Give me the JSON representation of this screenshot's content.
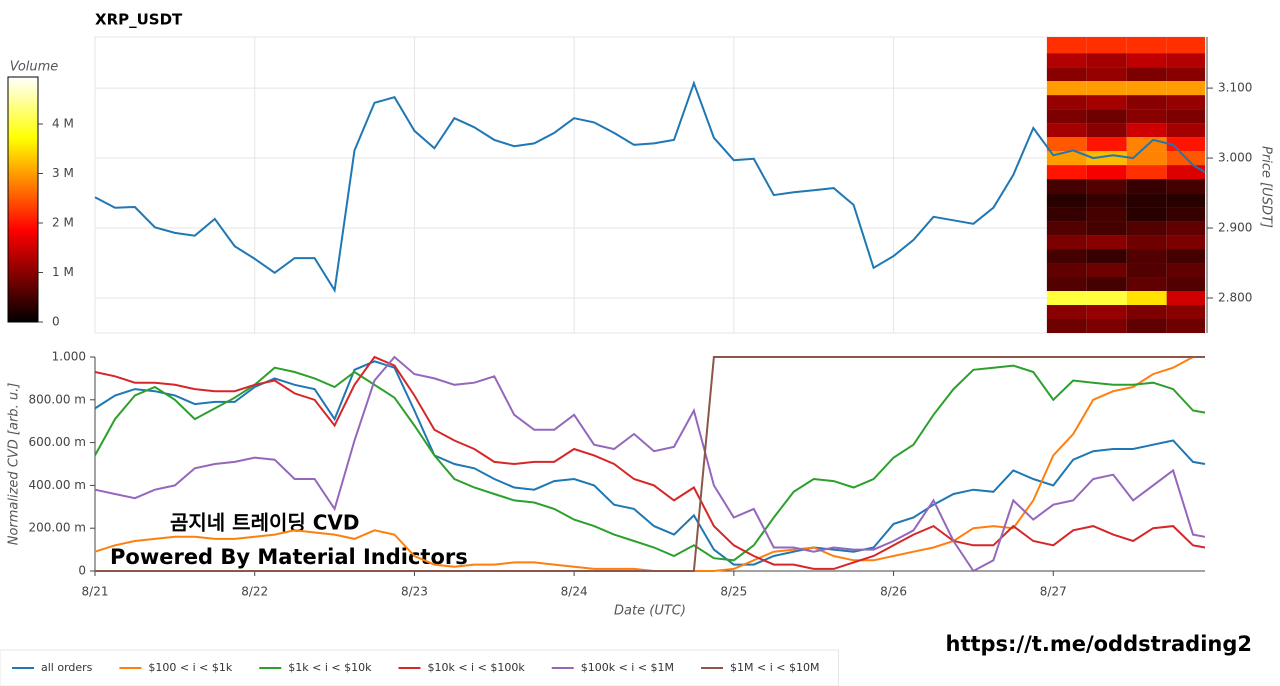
{
  "chart_data": [
    {
      "type": "line",
      "title": "XRP_USDT",
      "y_label": "Price [USDT]",
      "x": [
        0,
        0.125,
        0.25,
        0.375,
        0.5,
        0.625,
        0.75,
        0.875,
        1,
        1.125,
        1.25,
        1.375,
        1.5,
        1.625,
        1.75,
        1.875,
        2,
        2.125,
        2.25,
        2.375,
        2.5,
        2.625,
        2.75,
        2.875,
        3,
        3.125,
        3.25,
        3.375,
        3.5,
        3.625,
        3.75,
        3.875,
        4,
        4.125,
        4.25,
        4.375,
        4.5,
        4.625,
        4.75,
        4.875,
        5,
        5.125,
        5.25,
        5.375,
        5.5,
        5.625,
        5.75,
        5.875,
        6,
        6.125,
        6.25,
        6.375,
        6.5,
        6.625,
        6.75,
        6.875,
        6.95
      ],
      "xlim": [
        0,
        6.95
      ],
      "xticks": [
        0,
        1,
        2,
        3,
        4,
        5,
        6
      ],
      "ylim": [
        2.75,
        3.173
      ],
      "yticks": [
        {
          "value": 2.8,
          "label": "2.800"
        },
        {
          "value": 2.9,
          "label": "2.900"
        },
        {
          "value": 3.0,
          "label": "3.000"
        },
        {
          "value": 3.1,
          "label": "3.100"
        }
      ],
      "grid": true,
      "series": [
        {
          "color": "#1f77b4",
          "values": [
            2.944,
            2.929,
            2.93,
            2.901,
            2.893,
            2.889,
            2.913,
            2.874,
            2.856,
            2.836,
            2.857,
            2.857,
            2.811,
            3.011,
            3.079,
            3.087,
            3.039,
            3.014,
            3.057,
            3.044,
            3.026,
            3.017,
            3.021,
            3.036,
            3.057,
            3.051,
            3.036,
            3.019,
            3.021,
            3.026,
            3.107,
            3.029,
            2.997,
            2.999,
            2.947,
            2.951,
            2.954,
            2.957,
            2.933,
            2.843,
            2.86,
            2.883,
            2.916,
            2.911,
            2.906,
            2.929,
            2.976,
            3.043,
            3.004,
            3.011,
            3.0,
            3.004,
            3.0,
            3.026,
            3.019,
            2.99,
            2.98
          ]
        }
      ],
      "heatmap": {
        "x_edges": [
          5.96,
          6.21,
          6.46,
          6.71,
          6.95
        ],
        "y_edges": [
          2.75,
          2.77,
          2.79,
          2.81,
          2.83,
          2.85,
          2.87,
          2.89,
          2.91,
          2.93,
          2.95,
          2.97,
          2.99,
          3.01,
          3.03,
          3.05,
          3.07,
          3.09,
          3.11,
          3.13,
          3.15,
          3.173
        ],
        "values": [
          [
            0.8,
            0.9,
            0.7,
            0.8
          ],
          [
            1.0,
            1.1,
            0.9,
            1.0
          ],
          [
            4.0,
            4.0,
            3.5,
            1.5
          ],
          [
            0.6,
            0.5,
            0.7,
            0.6
          ],
          [
            0.7,
            0.8,
            0.6,
            0.7
          ],
          [
            0.5,
            0.4,
            0.6,
            0.5
          ],
          [
            0.9,
            1.0,
            0.8,
            0.9
          ],
          [
            0.6,
            0.5,
            0.6,
            0.7
          ],
          [
            0.4,
            0.5,
            0.3,
            0.4
          ],
          [
            0.3,
            0.4,
            0.3,
            0.3
          ],
          [
            0.5,
            0.6,
            0.4,
            0.5
          ],
          [
            2.0,
            1.8,
            2.2,
            1.6
          ],
          [
            3.0,
            3.2,
            2.8,
            2.5
          ],
          [
            2.5,
            2.0,
            2.8,
            2.0
          ],
          [
            1.2,
            1.0,
            1.5,
            1.2
          ],
          [
            0.9,
            0.8,
            1.0,
            0.9
          ],
          [
            1.1,
            1.2,
            1.0,
            1.1
          ],
          [
            3.0,
            3.0,
            3.0,
            3.0
          ],
          [
            1.0,
            1.1,
            0.9,
            1.0
          ],
          [
            1.3,
            1.2,
            1.4,
            1.3
          ],
          [
            2.2,
            2.2,
            2.2,
            2.2
          ]
        ],
        "colorbar": {
          "label": "Volume",
          "lim": [
            0,
            4.95
          ],
          "ticks": [
            0,
            {
              "value": 1,
              "label": "1 M"
            },
            {
              "value": 2,
              "label": "2 M"
            },
            {
              "value": 3,
              "label": "3 M"
            },
            {
              "value": 4,
              "label": "4 M"
            }
          ]
        }
      }
    },
    {
      "type": "line",
      "x_label": "Date (UTC)",
      "y_label": "Normalized CVD [arb. u.]",
      "x": [
        0,
        0.125,
        0.25,
        0.375,
        0.5,
        0.625,
        0.75,
        0.875,
        1,
        1.125,
        1.25,
        1.375,
        1.5,
        1.625,
        1.75,
        1.875,
        2,
        2.125,
        2.25,
        2.375,
        2.5,
        2.625,
        2.75,
        2.875,
        3,
        3.125,
        3.25,
        3.375,
        3.5,
        3.625,
        3.75,
        3.875,
        4,
        4.125,
        4.25,
        4.375,
        4.5,
        4.625,
        4.75,
        4.875,
        5,
        5.125,
        5.25,
        5.375,
        5.5,
        5.625,
        5.75,
        5.875,
        6,
        6.125,
        6.25,
        6.375,
        6.5,
        6.625,
        6.75,
        6.875,
        6.95
      ],
      "xlim": [
        0,
        6.95
      ],
      "xticks": [
        {
          "value": 0,
          "label": "8/21"
        },
        {
          "value": 1,
          "label": "8/22"
        },
        {
          "value": 2,
          "label": "8/23"
        },
        {
          "value": 3,
          "label": "8/24"
        },
        {
          "value": 4,
          "label": "8/25"
        },
        {
          "value": 5,
          "label": "8/26"
        },
        {
          "value": 6,
          "label": "8/27"
        }
      ],
      "ylim": [
        0,
        1
      ],
      "yticks": [
        0,
        {
          "value": 0.2,
          "label": "200.00 m"
        },
        {
          "value": 0.4,
          "label": "400.00 m"
        },
        {
          "value": 0.6,
          "label": "600.00 m"
        },
        {
          "value": 0.8,
          "label": "800.00 m"
        },
        {
          "value": 1,
          "label": "1.000"
        }
      ],
      "grid": false,
      "legend": "bottom-left",
      "series": [
        {
          "name": "all orders",
          "color": "#1f77b4",
          "values": [
            0.76,
            0.82,
            0.85,
            0.84,
            0.82,
            0.78,
            0.79,
            0.79,
            0.86,
            0.9,
            0.87,
            0.85,
            0.71,
            0.94,
            0.98,
            0.95,
            0.75,
            0.54,
            0.5,
            0.48,
            0.43,
            0.39,
            0.38,
            0.42,
            0.43,
            0.4,
            0.31,
            0.29,
            0.21,
            0.17,
            0.26,
            0.1,
            0.03,
            0.03,
            0.07,
            0.09,
            0.11,
            0.1,
            0.09,
            0.11,
            0.22,
            0.25,
            0.31,
            0.36,
            0.38,
            0.37,
            0.47,
            0.43,
            0.4,
            0.52,
            0.56,
            0.57,
            0.57,
            0.59,
            0.61,
            0.51,
            0.5
          ]
        },
        {
          "name": "$100 < i < $1k",
          "color": "#ff7f0e",
          "values": [
            0.09,
            0.12,
            0.14,
            0.15,
            0.16,
            0.16,
            0.15,
            0.15,
            0.16,
            0.17,
            0.19,
            0.18,
            0.17,
            0.15,
            0.19,
            0.17,
            0.07,
            0.03,
            0.02,
            0.03,
            0.03,
            0.04,
            0.04,
            0.03,
            0.02,
            0.01,
            0.01,
            0.01,
            0,
            0,
            0,
            0,
            0.01,
            0.05,
            0.09,
            0.1,
            0.11,
            0.07,
            0.05,
            0.05,
            0.07,
            0.09,
            0.11,
            0.14,
            0.2,
            0.21,
            0.2,
            0.33,
            0.54,
            0.64,
            0.8,
            0.84,
            0.86,
            0.92,
            0.95,
            1.0,
            1.0
          ]
        },
        {
          "name": "$1k < i < $10k",
          "color": "#2ca02c",
          "values": [
            0.54,
            0.71,
            0.82,
            0.86,
            0.8,
            0.71,
            0.76,
            0.81,
            0.87,
            0.95,
            0.93,
            0.9,
            0.86,
            0.93,
            0.87,
            0.81,
            0.68,
            0.54,
            0.43,
            0.39,
            0.36,
            0.33,
            0.32,
            0.29,
            0.24,
            0.21,
            0.17,
            0.14,
            0.11,
            0.07,
            0.12,
            0.06,
            0.05,
            0.12,
            0.25,
            0.37,
            0.43,
            0.42,
            0.39,
            0.43,
            0.53,
            0.59,
            0.73,
            0.85,
            0.94,
            0.95,
            0.96,
            0.93,
            0.8,
            0.89,
            0.88,
            0.87,
            0.87,
            0.88,
            0.85,
            0.75,
            0.74
          ]
        },
        {
          "name": "$10k < i < $100k",
          "color": "#d62728",
          "values": [
            0.93,
            0.91,
            0.88,
            0.88,
            0.87,
            0.85,
            0.84,
            0.84,
            0.87,
            0.89,
            0.83,
            0.8,
            0.68,
            0.87,
            1.0,
            0.96,
            0.82,
            0.66,
            0.61,
            0.57,
            0.51,
            0.5,
            0.51,
            0.51,
            0.57,
            0.54,
            0.5,
            0.43,
            0.4,
            0.33,
            0.39,
            0.21,
            0.12,
            0.07,
            0.03,
            0.03,
            0.01,
            0.01,
            0.04,
            0.07,
            0.12,
            0.17,
            0.21,
            0.14,
            0.12,
            0.12,
            0.21,
            0.14,
            0.12,
            0.19,
            0.21,
            0.17,
            0.14,
            0.2,
            0.21,
            0.12,
            0.11
          ]
        },
        {
          "name": "$100k < i < $1M",
          "color": "#9467bd",
          "values": [
            0.38,
            0.36,
            0.34,
            0.38,
            0.4,
            0.48,
            0.5,
            0.51,
            0.53,
            0.52,
            0.43,
            0.43,
            0.29,
            0.61,
            0.89,
            1.0,
            0.92,
            0.9,
            0.87,
            0.88,
            0.91,
            0.73,
            0.66,
            0.66,
            0.73,
            0.59,
            0.57,
            0.64,
            0.56,
            0.58,
            0.75,
            0.4,
            0.25,
            0.29,
            0.11,
            0.11,
            0.09,
            0.11,
            0.1,
            0.1,
            0.14,
            0.19,
            0.33,
            0.14,
            0,
            0.05,
            0.33,
            0.24,
            0.31,
            0.33,
            0.43,
            0.45,
            0.33,
            0.4,
            0.47,
            0.17,
            0.16
          ]
        },
        {
          "name": "$1M < i < $10M",
          "color": "#8c564b",
          "values": [
            0,
            0,
            0,
            0,
            0,
            0,
            0,
            0,
            0,
            0,
            0,
            0,
            0,
            0,
            0,
            0,
            0,
            0,
            0,
            0,
            0,
            0,
            0,
            0,
            0,
            0,
            0,
            0,
            0,
            0,
            0,
            1,
            1,
            1,
            1,
            1,
            1,
            1,
            1,
            1,
            1,
            1,
            1,
            1,
            1,
            1,
            1,
            1,
            1,
            1,
            1,
            1,
            1,
            1,
            1,
            1,
            1
          ]
        }
      ]
    }
  ],
  "watermark": {
    "line1": "곰지네 트레이딩 CVD",
    "line2": "Powered By Material Indictors"
  },
  "link": "https://t.me/oddstrading2"
}
